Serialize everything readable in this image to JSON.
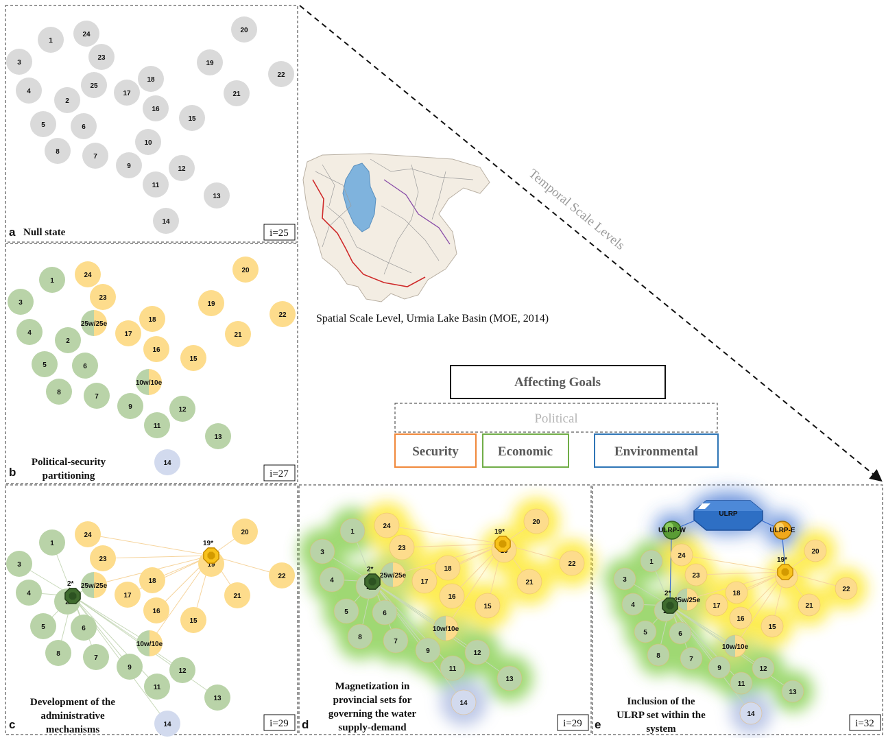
{
  "spatial_caption": "Spatial Scale Level, Urmia Lake Basin (MOE, 2014)",
  "temporal_label": "Temporal Scale Levels",
  "goals": {
    "title": "Affecting Goals",
    "political": "Political",
    "security": "Security",
    "economic": "Economic",
    "environmental": "Environmental"
  },
  "colors": {
    "security": "#f0883a",
    "economic": "#70ad47",
    "environmental": "#2e75b6",
    "null_node": "#dadada",
    "green_node": "#b9d3a8",
    "yellow_node": "#fddc8c",
    "blue_node": "#d2daee",
    "ulrp": "#2e6fc4"
  },
  "panels": {
    "a": {
      "letter": "a",
      "title": "Null state",
      "iteration": "i=25"
    },
    "b": {
      "letter": "b",
      "title_line1": "Political-security",
      "title_line2": "partitioning",
      "iteration": "i=27"
    },
    "c": {
      "letter": "c",
      "title_line1": "Development of the",
      "title_line2": "administrative",
      "title_line3": "mechanisms",
      "iteration": "i=29"
    },
    "d": {
      "letter": "d",
      "title_line1": "Magnetization in",
      "title_line2": "provincial sets for",
      "title_line3": "governing the water",
      "title_line4": "supply-demand",
      "iteration": "i=29"
    },
    "e": {
      "letter": "e",
      "title_line1": "Inclusion of the",
      "title_line2": "ULRP set within the",
      "title_line3": "system",
      "iteration": "i=32"
    }
  },
  "hub_labels": {
    "green_hub": "2*",
    "yellow_hub": "19*",
    "ulrp": "ULRP",
    "ulrp_w": "ULRP-W",
    "ulrp_e": "ULRP-E"
  },
  "nodes": [
    {
      "id": "1",
      "label": "1",
      "group": "green"
    },
    {
      "id": "2",
      "label": "2",
      "group": "green"
    },
    {
      "id": "3",
      "label": "3",
      "group": "green"
    },
    {
      "id": "4",
      "label": "4",
      "group": "green"
    },
    {
      "id": "5",
      "label": "5",
      "group": "green"
    },
    {
      "id": "6",
      "label": "6",
      "group": "green"
    },
    {
      "id": "7",
      "label": "7",
      "group": "green"
    },
    {
      "id": "8",
      "label": "8",
      "group": "green"
    },
    {
      "id": "9",
      "label": "9",
      "group": "green"
    },
    {
      "id": "10",
      "label": "10",
      "group": "split"
    },
    {
      "id": "11",
      "label": "11",
      "group": "green"
    },
    {
      "id": "12",
      "label": "12",
      "group": "green"
    },
    {
      "id": "13",
      "label": "13",
      "group": "green"
    },
    {
      "id": "14",
      "label": "14",
      "group": "blue"
    },
    {
      "id": "15",
      "label": "15",
      "group": "yellow"
    },
    {
      "id": "16",
      "label": "16",
      "group": "yellow"
    },
    {
      "id": "17",
      "label": "17",
      "group": "yellow"
    },
    {
      "id": "18",
      "label": "18",
      "group": "yellow"
    },
    {
      "id": "19",
      "label": "19",
      "group": "yellow"
    },
    {
      "id": "20",
      "label": "20",
      "group": "yellow"
    },
    {
      "id": "21",
      "label": "21",
      "group": "yellow"
    },
    {
      "id": "22",
      "label": "22",
      "group": "yellow"
    },
    {
      "id": "23",
      "label": "23",
      "group": "yellow"
    },
    {
      "id": "24",
      "label": "24",
      "group": "yellow"
    },
    {
      "id": "25",
      "label": "25",
      "group": "split"
    }
  ],
  "split_labels": {
    "25": "25w/25e",
    "10": "10w/10e"
  }
}
